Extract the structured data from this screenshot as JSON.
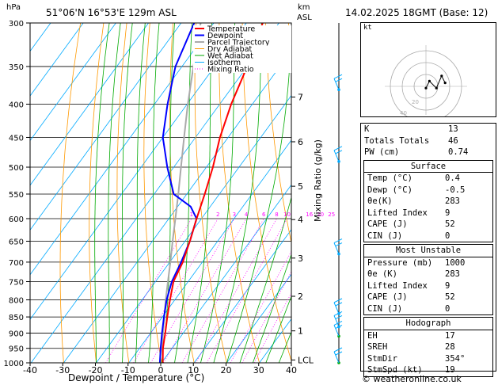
{
  "header": {
    "hpa_label": "hPa",
    "location": "51°06'N  16°53'E  129m  ASL",
    "km_label": "km",
    "asl_label": "ASL",
    "datetime": "14.02.2025  18GMT  (Base: 12)"
  },
  "footer": {
    "credit": "© weatheronline.co.uk"
  },
  "colors": {
    "temperature": "#ff0000",
    "dewpoint": "#0000ff",
    "parcel": "#aaaaaa",
    "dry_adiabat": "#ff9900",
    "wet_adiabat": "#00aa00",
    "isotherm": "#00aaff",
    "mixing_ratio": "#ff00ff"
  },
  "chart_data": {
    "type": "line",
    "title": "",
    "xlabel": "Dewpoint / Temperature (°C)",
    "ylabel_right": "Mixing Ratio (g/kg)",
    "x_ticks": [
      "-40",
      "-30",
      "-20",
      "-10",
      "0",
      "10",
      "20",
      "30",
      "40"
    ],
    "p_ticks": [
      "300",
      "350",
      "400",
      "450",
      "500",
      "550",
      "600",
      "650",
      "700",
      "750",
      "800",
      "850",
      "900",
      "950",
      "1000"
    ],
    "km_ticks": [
      {
        "label": "7",
        "p": 390
      },
      {
        "label": "6",
        "p": 457
      },
      {
        "label": "5",
        "p": 535
      },
      {
        "label": "4",
        "p": 602
      },
      {
        "label": "3",
        "p": 690
      },
      {
        "label": "2",
        "p": 790
      },
      {
        "label": "1",
        "p": 893
      },
      {
        "label": "LCL",
        "p": 990
      }
    ],
    "mixing_ratio_labels": [
      "1",
      "2",
      "3",
      "4",
      "6",
      "8",
      "10",
      "16",
      "20",
      "25"
    ],
    "mixing_ratio_values": [
      1,
      2,
      3,
      4,
      6,
      8,
      10,
      16,
      20,
      25
    ],
    "legend": [
      "Temperature",
      "Dewpoint",
      "Parcel Trajectory",
      "Dry Adiabat",
      "Wet Adiabat",
      "Isotherm",
      "Mixing Ratio"
    ],
    "series": [
      {
        "name": "Temperature",
        "p": [
          1000,
          950,
          900,
          850,
          800,
          750,
          700,
          650,
          600,
          550,
          500,
          450,
          400,
          350,
          300
        ],
        "t": [
          0.4,
          -2.8,
          -5.5,
          -8.5,
          -11.5,
          -14.5,
          -16.0,
          -18.5,
          -21.5,
          -24.5,
          -28.0,
          -32.5,
          -36.5,
          -40.0,
          -45.0
        ]
      },
      {
        "name": "Dewpoint",
        "p": [
          1000,
          950,
          900,
          850,
          800,
          750,
          700,
          650,
          600,
          575,
          550,
          500,
          450,
          400,
          350,
          300
        ],
        "t": [
          -0.5,
          -3.5,
          -6.5,
          -9.5,
          -12.5,
          -15.0,
          -16.5,
          -18.5,
          -21.5,
          -26.0,
          -34.0,
          -42.0,
          -50.0,
          -56.0,
          -62.0,
          -66.0
        ]
      },
      {
        "name": "Parcel Trajectory",
        "p": [
          1000,
          950,
          900,
          850,
          800,
          750,
          700,
          650,
          600,
          550,
          500,
          450,
          400,
          350,
          300
        ],
        "t": [
          0.4,
          -3.0,
          -6.2,
          -9.4,
          -12.8,
          -16.2,
          -19.8,
          -23.8,
          -28.0,
          -32.6,
          -37.8,
          -43.5,
          -49.8,
          -56.5,
          -64.0
        ]
      }
    ]
  },
  "hodograph": {
    "label": "kt",
    "ring_labels": [
      "20",
      "40"
    ],
    "points": [
      [
        0,
        1
      ],
      [
        2,
        -3
      ],
      [
        6,
        1
      ],
      [
        9,
        -6
      ],
      [
        11,
        -2
      ]
    ]
  },
  "wind_barbs_p": [
    380,
    490,
    680,
    840,
    880,
    910,
    1000
  ],
  "indices": {
    "rows": [
      {
        "k": "K",
        "v": "13"
      },
      {
        "k": "Totals Totals",
        "v": "46"
      },
      {
        "k": "PW (cm)",
        "v": "0.74"
      }
    ]
  },
  "surface": {
    "title": "Surface",
    "rows": [
      {
        "k": "Temp (°C)",
        "v": "0.4"
      },
      {
        "k": "Dewp (°C)",
        "v": "-0.5"
      },
      {
        "k": "θe(K)",
        "v": "283"
      },
      {
        "k": "Lifted Index",
        "v": "9"
      },
      {
        "k": "CAPE (J)",
        "v": "52"
      },
      {
        "k": "CIN (J)",
        "v": "0"
      }
    ]
  },
  "most_unstable": {
    "title": "Most Unstable",
    "rows": [
      {
        "k": "Pressure (mb)",
        "v": "1000"
      },
      {
        "k": "θe (K)",
        "v": "283"
      },
      {
        "k": "Lifted Index",
        "v": "9"
      },
      {
        "k": "CAPE (J)",
        "v": "52"
      },
      {
        "k": "CIN (J)",
        "v": "0"
      }
    ]
  },
  "hodo_table": {
    "title": "Hodograph",
    "rows": [
      {
        "k": "EH",
        "v": "17"
      },
      {
        "k": "SREH",
        "v": "28"
      },
      {
        "k": "StmDir",
        "v": "354°"
      },
      {
        "k": "StmSpd (kt)",
        "v": "19"
      }
    ]
  }
}
